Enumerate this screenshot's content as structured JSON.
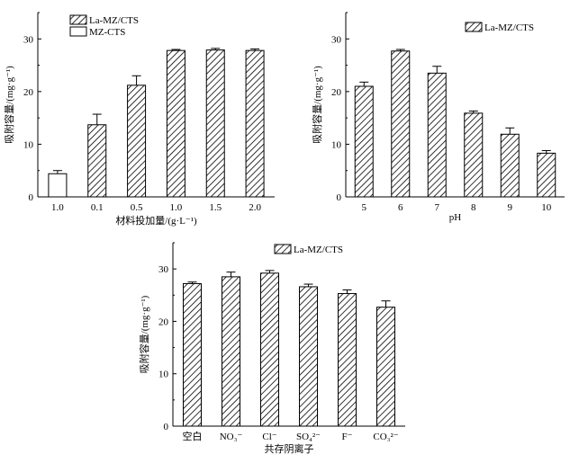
{
  "figure": {
    "colors": {
      "hatch": "#000000",
      "axis": "#000000",
      "background": "#ffffff",
      "plain_bar": "#ffffff"
    }
  },
  "chart_data": [
    {
      "id": "a",
      "type": "bar",
      "title": "",
      "xlabel": "材料投加量/(g·L⁻¹)",
      "ylabel": "吸附容量/(mg·g⁻¹)",
      "ylim": [
        0,
        35
      ],
      "yticks": [
        0,
        10,
        20,
        30
      ],
      "categories": [
        "1.0",
        "0.1",
        "0.5",
        "1.0",
        "1.5",
        "2.0"
      ],
      "series": [
        {
          "name": "La-MZ/CTS",
          "pattern": "hatched",
          "values": [
            null,
            13.7,
            21.2,
            27.8,
            27.9,
            27.8
          ],
          "errors": [
            null,
            2.0,
            1.8,
            0.2,
            0.3,
            0.3
          ]
        },
        {
          "name": "MZ-CTS",
          "pattern": "plain",
          "values": [
            4.4,
            null,
            null,
            null,
            null,
            null
          ],
          "errors": [
            0.6,
            null,
            null,
            null,
            null,
            null
          ]
        }
      ],
      "legend": "top-left"
    },
    {
      "id": "b",
      "type": "bar",
      "title": "",
      "xlabel": "pH",
      "ylabel": "吸附容量/(mg·g⁻¹)",
      "ylim": [
        0,
        35
      ],
      "yticks": [
        0,
        10,
        20,
        30
      ],
      "categories": [
        "5",
        "6",
        "7",
        "8",
        "9",
        "10"
      ],
      "series": [
        {
          "name": "La-MZ/CTS",
          "pattern": "hatched",
          "values": [
            21.0,
            27.7,
            23.5,
            15.9,
            11.9,
            8.3
          ],
          "errors": [
            0.8,
            0.3,
            1.3,
            0.4,
            1.2,
            0.5
          ]
        }
      ],
      "legend": "top-right"
    },
    {
      "id": "c",
      "type": "bar",
      "title": "",
      "xlabel": "共存阴离子",
      "ylabel": "吸附容量/(mg·g⁻¹)",
      "ylim": [
        0,
        35
      ],
      "yticks": [
        0,
        10,
        20,
        30
      ],
      "categories": [
        "空白",
        "NO₃⁻",
        "Cl⁻",
        "SO₄²⁻",
        "F⁻",
        "CO₃²⁻"
      ],
      "series": [
        {
          "name": "La-MZ/CTS",
          "pattern": "hatched",
          "values": [
            27.2,
            28.5,
            29.2,
            26.6,
            25.3,
            22.7
          ],
          "errors": [
            0.3,
            0.9,
            0.5,
            0.5,
            0.7,
            1.2
          ]
        }
      ],
      "legend": "top-center"
    }
  ]
}
